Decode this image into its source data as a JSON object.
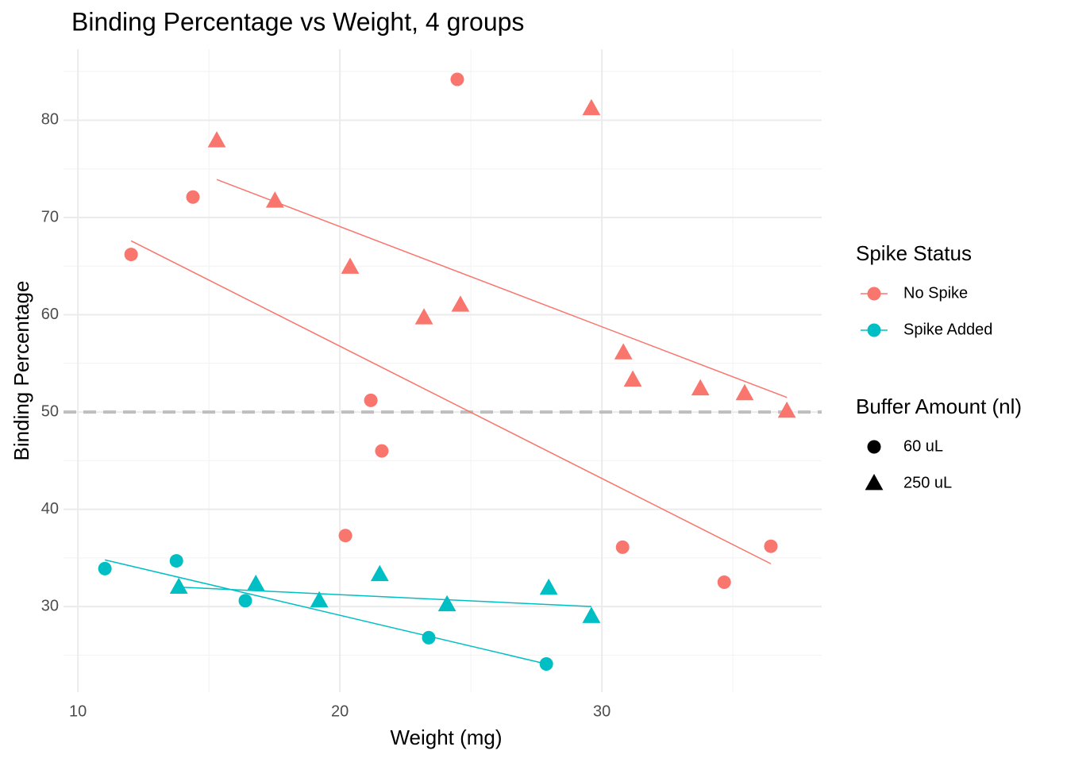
{
  "chart_data": {
    "type": "scatter",
    "title": "Binding Percentage vs Weight, 4 groups",
    "x_label": "Weight (mg)",
    "y_label": "Binding Percentage",
    "xlim": [
      9.45,
      38.39
    ],
    "ylim": [
      21.2,
      87.3
    ],
    "xticks": [
      10,
      20,
      30
    ],
    "yticks": [
      30,
      40,
      50,
      60,
      70,
      80
    ],
    "x_minor_ticks": [
      15,
      25,
      35
    ],
    "y_minor_ticks": [
      25,
      35,
      45,
      55,
      65,
      75,
      85
    ],
    "grid": true,
    "hline": {
      "value": 50,
      "color": "#bebebe",
      "dashed": true
    },
    "legend": {
      "color": {
        "title": "Spike Status",
        "items": [
          {
            "name": "No Spike",
            "color": "#F8766D"
          },
          {
            "name": "Spike Added",
            "color": "#00BFC4"
          }
        ]
      },
      "shape": {
        "title": "Buffer Amount (nl)",
        "items": [
          {
            "name": "60 uL",
            "shape": "circle"
          },
          {
            "name": "250 uL",
            "shape": "triangle"
          }
        ]
      }
    },
    "series": [
      {
        "color_item": 0,
        "shape_item": 0,
        "x": [
          12.03,
          14.39,
          24.48,
          21.18,
          21.6,
          20.21,
          30.79,
          34.67,
          36.45
        ],
        "values": [
          66.2,
          72.1,
          84.2,
          51.2,
          46.0,
          37.3,
          36.1,
          32.5,
          36.2
        ],
        "fit": {
          "x": [
            12.03,
            36.45
          ],
          "values": [
            67.6,
            34.4
          ]
        }
      },
      {
        "color_item": 0,
        "shape_item": 1,
        "x": [
          15.3,
          17.52,
          20.39,
          23.21,
          24.6,
          29.6,
          30.82,
          31.18,
          33.76,
          35.45,
          37.06
        ],
        "values": [
          77.9,
          71.7,
          64.9,
          59.7,
          61.0,
          81.2,
          56.1,
          53.3,
          52.4,
          51.9,
          50.1
        ],
        "fit": {
          "x": [
            15.3,
            37.06
          ],
          "values": [
            73.9,
            51.5
          ]
        }
      },
      {
        "color_item": 1,
        "shape_item": 0,
        "x": [
          11.03,
          13.76,
          16.39,
          23.39,
          27.88
        ],
        "values": [
          33.9,
          34.7,
          30.6,
          26.8,
          24.1
        ],
        "fit": {
          "x": [
            11.03,
            27.88
          ],
          "values": [
            34.8,
            24.1
          ]
        }
      },
      {
        "color_item": 1,
        "shape_item": 1,
        "x": [
          13.85,
          16.79,
          19.21,
          21.52,
          24.09,
          27.97,
          29.6
        ],
        "values": [
          32.0,
          32.3,
          30.6,
          33.3,
          30.2,
          31.9,
          29.0
        ],
        "fit": {
          "x": [
            13.85,
            29.6
          ],
          "values": [
            32.0,
            30.0
          ]
        }
      }
    ]
  }
}
